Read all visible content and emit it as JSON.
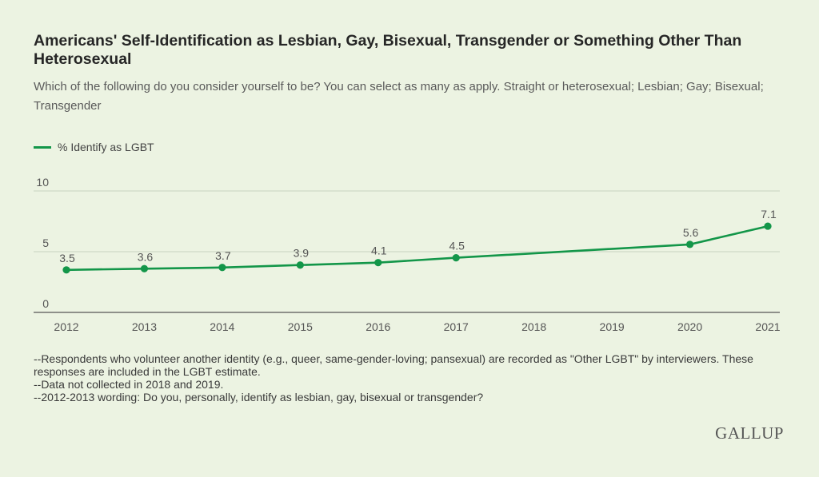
{
  "header": {
    "title": "Americans' Self-Identification as Lesbian, Gay, Bisexual, Transgender or Something Other Than Heterosexual",
    "subtitle": "Which of the following do you consider yourself to be? You can select as many as apply. Straight or heterosexual; Lesbian; Gay; Bisexual; Transgender"
  },
  "legend": {
    "label": "% Identify as LGBT"
  },
  "notes": [
    "--Respondents who volunteer another identity (e.g., queer, same-gender-loving; pansexual) are recorded as \"Other LGBT\" by interviewers. These responses are included in the LGBT estimate.",
    "--Data not collected in 2018 and 2019.",
    "--2012-2013 wording: Do you, personally, identify as lesbian, gay, bisexual or transgender?"
  ],
  "brand": "GALLUP",
  "colors": {
    "line": "#139649",
    "background": "#ecf3e2",
    "grid": "#c9d3c0",
    "axis": "#555555"
  },
  "chart_data": {
    "type": "line",
    "x_ticks": [
      "2012",
      "2013",
      "2014",
      "2015",
      "2016",
      "2017",
      "2018",
      "2019",
      "2020",
      "2021"
    ],
    "y_ticks": [
      "0",
      "5",
      "10"
    ],
    "ylim": [
      0,
      10
    ],
    "grid": "horizontal",
    "legend_position": "top-left",
    "series": [
      {
        "name": "% Identify as LGBT",
        "points": [
          {
            "x": "2012",
            "y": 3.5,
            "label": "3.5"
          },
          {
            "x": "2013",
            "y": 3.6,
            "label": "3.6"
          },
          {
            "x": "2014",
            "y": 3.7,
            "label": "3.7"
          },
          {
            "x": "2015",
            "y": 3.9,
            "label": "3.9"
          },
          {
            "x": "2016",
            "y": 4.1,
            "label": "4.1"
          },
          {
            "x": "2017",
            "y": 4.5,
            "label": "4.5"
          },
          {
            "x": "2020",
            "y": 5.6,
            "label": "5.6"
          },
          {
            "x": "2021",
            "y": 7.1,
            "label": "7.1"
          }
        ]
      }
    ]
  }
}
